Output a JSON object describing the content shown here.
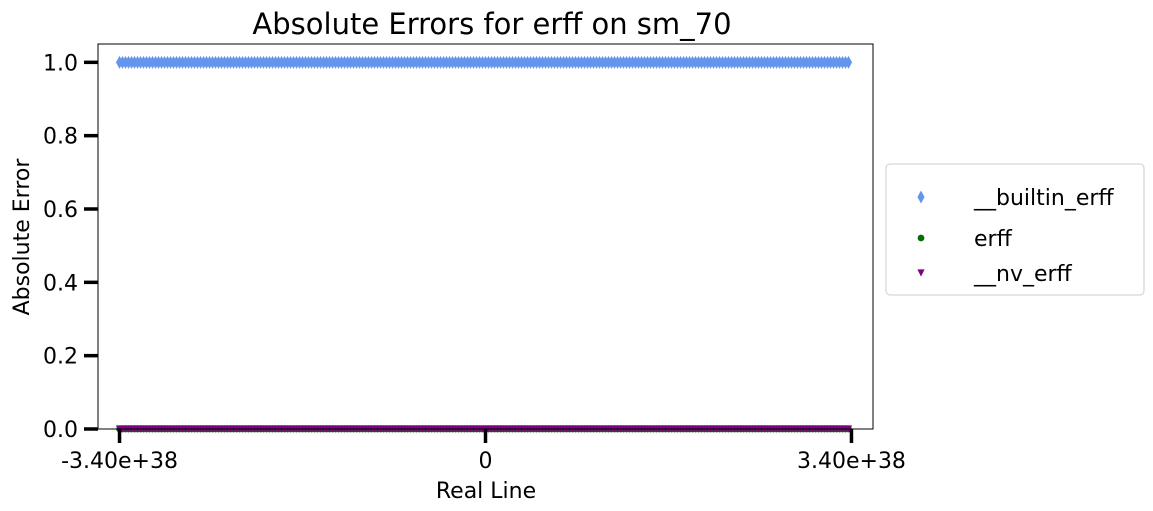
{
  "chart_data": {
    "type": "scatter",
    "title": "Absolute Errors for erff on sm_70",
    "xlabel": "Real Line",
    "ylabel": "Absolute Error",
    "xlim": [
      -3.6e+38,
      3.6e+38
    ],
    "ylim": [
      0.0,
      1.05
    ],
    "xticks": [
      {
        "value": -3.4e+38,
        "label": "-3.40e+38"
      },
      {
        "value": 0,
        "label": "0"
      },
      {
        "value": 3.4e+38,
        "label": "3.40e+38"
      }
    ],
    "yticks": [
      {
        "value": 0.0,
        "label": "0.0"
      },
      {
        "value": 0.2,
        "label": "0.2"
      },
      {
        "value": 0.4,
        "label": "0.4"
      },
      {
        "value": 0.6,
        "label": "0.6"
      },
      {
        "value": 0.8,
        "label": "0.8"
      },
      {
        "value": 1.0,
        "label": "1.0"
      }
    ],
    "grid": false,
    "legend_position": "outside-right",
    "series": [
      {
        "name": "__builtin_erff",
        "marker": "diamond",
        "color": "#6495ed",
        "x_range": [
          -3.4e+38,
          3.4e+38
        ],
        "y": 1.0
      },
      {
        "name": "erff",
        "marker": "circle",
        "color": "#007000",
        "x_range": [
          -3.4e+38,
          3.4e+38
        ],
        "y": 0.0
      },
      {
        "name": "__nv_erff",
        "marker": "triangle-down",
        "color": "#800080",
        "x_range": [
          -3.4e+38,
          3.4e+38
        ],
        "y": 0.0
      }
    ]
  }
}
